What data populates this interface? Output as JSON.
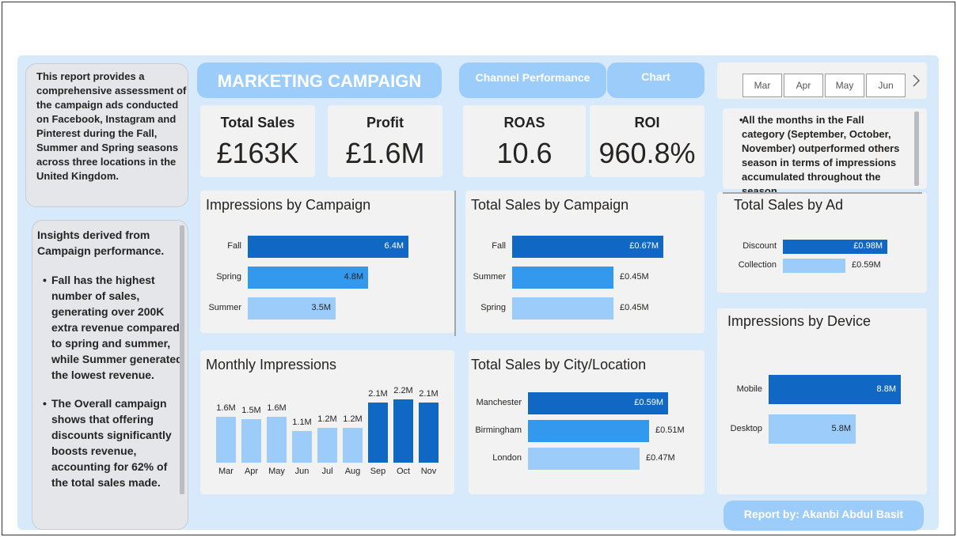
{
  "intro": "This report provides a comprehensive assessment of the campaign ads conducted on Facebook, Instagram and Pinterest during the Fall, Summer and Spring seasons across three locations in the United Kingdom.",
  "insights": {
    "heading": "Insights derived from Campaign performance.",
    "bullets": [
      "Fall has the highest number of sales, generating over 200K extra revenue compared to spring and summer, while Summer generated the lowest revenue.",
      "The Overall campaign shows that offering discounts significantly boosts revenue, accounting for 62% of the total sales made."
    ]
  },
  "header": {
    "title": "MARKETING CAMPAIGN",
    "tabs": [
      "Channel Performance",
      "Chart"
    ]
  },
  "month_slicer": {
    "months": [
      "Mar",
      "Apr",
      "May",
      "Jun"
    ],
    "next_icon": "chevron-right-icon"
  },
  "kpis": [
    {
      "label": "Total Sales",
      "value": "£163K"
    },
    {
      "label": "Profit",
      "value": "£1.6M"
    },
    {
      "label": "ROAS",
      "value": "10.6"
    },
    {
      "label": "ROI",
      "value": "960.8%"
    }
  ],
  "fall_note": "All the months in the Fall category (September, October, November) outperformed others season in terms of impressions accumulated throughout the season.",
  "footer": "Report by: Akanbi Abdul Basit",
  "colors": {
    "dark": "#1168c4",
    "mid": "#3399ee",
    "light": "#9ccdfa"
  },
  "chart_data": [
    {
      "type": "bar",
      "title": "Impressions by Campaign",
      "categories": [
        "Fall",
        "Spring",
        "Summer"
      ],
      "values": [
        6.4,
        4.8,
        3.5
      ],
      "labels": [
        "6.4M",
        "4.8M",
        "3.5M"
      ],
      "xlim": [
        0,
        6.4
      ]
    },
    {
      "type": "bar",
      "title": "Total Sales by Campaign",
      "categories": [
        "Fall",
        "Summer",
        "Spring"
      ],
      "values": [
        0.67,
        0.45,
        0.45
      ],
      "labels": [
        "£0.67M",
        "£0.45M",
        "£0.45M"
      ],
      "xlim": [
        0,
        0.67
      ]
    },
    {
      "type": "bar",
      "title": "Total Sales by Ad",
      "categories": [
        "Discount",
        "Collection"
      ],
      "values": [
        0.98,
        0.59
      ],
      "labels": [
        "£0.98M",
        "£0.59M"
      ],
      "xlim": [
        0,
        0.98
      ]
    },
    {
      "type": "bar",
      "title": "Monthly Impressions",
      "categories": [
        "Mar",
        "Apr",
        "May",
        "Jun",
        "Jul",
        "Aug",
        "Sep",
        "Oct",
        "Nov"
      ],
      "values": [
        1.6,
        1.5,
        1.6,
        1.1,
        1.2,
        1.2,
        2.1,
        2.2,
        2.1
      ],
      "labels": [
        "1.6M",
        "1.5M",
        "1.6M",
        "1.1M",
        "1.2M",
        "1.2M",
        "2.1M",
        "2.2M",
        "2.1M"
      ],
      "ylim": [
        0,
        2.2
      ]
    },
    {
      "type": "bar",
      "title": "Total Sales by City/Location",
      "categories": [
        "Manchester",
        "Birmingham",
        "London"
      ],
      "values": [
        0.59,
        0.51,
        0.47
      ],
      "labels": [
        "£0.59M",
        "£0.51M",
        "£0.47M"
      ],
      "xlim": [
        0,
        0.59
      ]
    },
    {
      "type": "bar",
      "title": "Impressions by Device",
      "categories": [
        "Mobile",
        "Desktop"
      ],
      "values": [
        8.8,
        5.8
      ],
      "labels": [
        "8.8M",
        "5.8M"
      ],
      "xlim": [
        0,
        8.8
      ]
    }
  ]
}
